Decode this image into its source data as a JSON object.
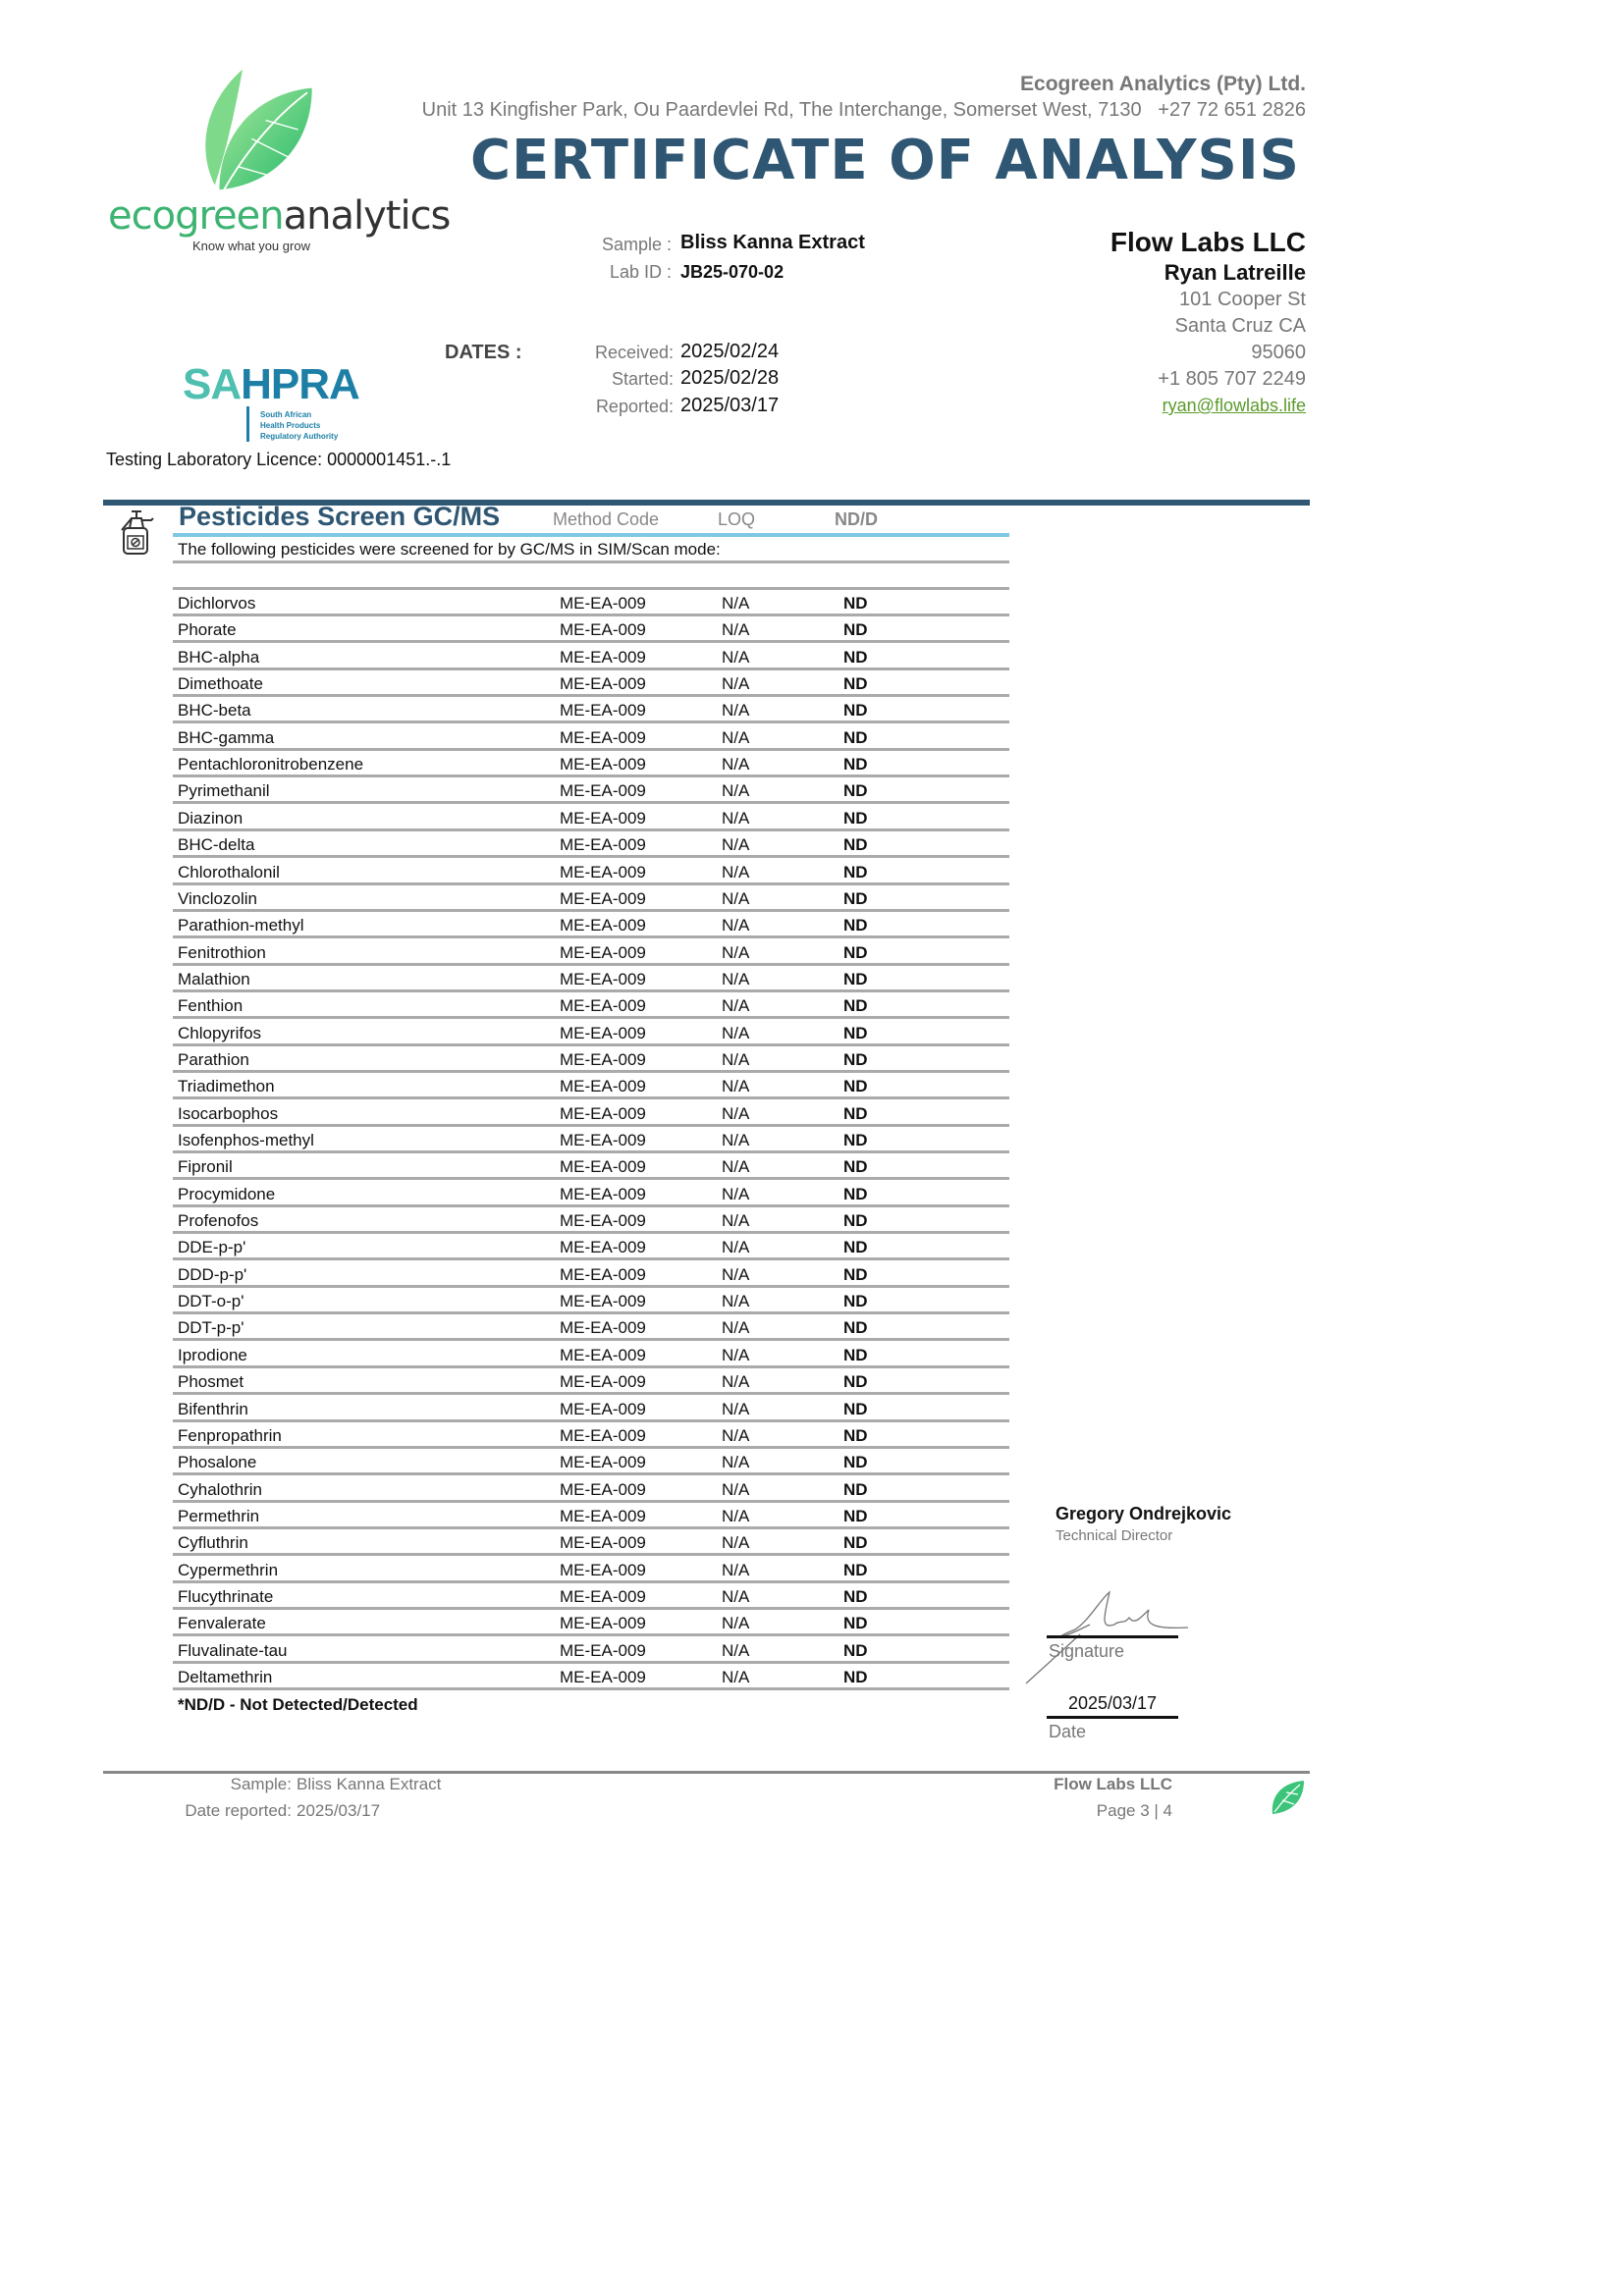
{
  "header": {
    "company_name": "Ecogreen Analytics (Pty) Ltd.",
    "address": "Unit 13 Kingfisher Park, Ou Paardevlei Rd, The Interchange, Somerset West, 7130   +27 72 651 2826",
    "title": "CERTIFICATE OF ANALYSIS",
    "logo_text_green": "ecogreen",
    "logo_text_dark": "analytics",
    "logo_tagline": "Know what you grow",
    "sahpra_sa": "SA",
    "sahpra_hpra": "HPRA",
    "sahpra_sub": "South African\nHealth Products\nRegulatory Authority",
    "licence": "Testing Laboratory Licence: 0000001451.-.1"
  },
  "sample": {
    "sample_label": "Sample :",
    "sample_value": "Bliss Kanna Extract",
    "labid_label": "Lab ID :",
    "labid_value": "JB25-070-02"
  },
  "dates": {
    "heading": "DATES :",
    "received_label": "Received:",
    "received": "2025/02/24",
    "started_label": "Started:",
    "started": "2025/02/28",
    "reported_label": "Reported:",
    "reported": "2025/03/17"
  },
  "client": {
    "company": "Flow Labs LLC",
    "contact": "Ryan Latreille",
    "street": "101 Cooper St",
    "city": "Santa Cruz CA",
    "zip": "95060",
    "phone": "+1 805 707 2249",
    "email": "ryan@flowlabs.life"
  },
  "section": {
    "title": "Pesticides Screen GC/MS",
    "columns": [
      "Method Code",
      "LOQ",
      "ND/D"
    ],
    "intro": "The following pesticides were screened for by GC/MS in SIM/Scan mode:",
    "footnote": "*ND/D - Not Detected/Detected",
    "rows": [
      [
        "Dichlorvos",
        "ME-EA-009",
        "N/A",
        "ND"
      ],
      [
        "Phorate",
        "ME-EA-009",
        "N/A",
        "ND"
      ],
      [
        "BHC-alpha",
        "ME-EA-009",
        "N/A",
        "ND"
      ],
      [
        "Dimethoate",
        "ME-EA-009",
        "N/A",
        "ND"
      ],
      [
        "BHC-beta",
        "ME-EA-009",
        "N/A",
        "ND"
      ],
      [
        "BHC-gamma",
        "ME-EA-009",
        "N/A",
        "ND"
      ],
      [
        "Pentachloronitrobenzene",
        "ME-EA-009",
        "N/A",
        "ND"
      ],
      [
        "Pyrimethanil",
        "ME-EA-009",
        "N/A",
        "ND"
      ],
      [
        "Diazinon",
        "ME-EA-009",
        "N/A",
        "ND"
      ],
      [
        "BHC-delta",
        "ME-EA-009",
        "N/A",
        "ND"
      ],
      [
        "Chlorothalonil",
        "ME-EA-009",
        "N/A",
        "ND"
      ],
      [
        "Vinclozolin",
        "ME-EA-009",
        "N/A",
        "ND"
      ],
      [
        "Parathion-methyl",
        "ME-EA-009",
        "N/A",
        "ND"
      ],
      [
        "Fenitrothion",
        "ME-EA-009",
        "N/A",
        "ND"
      ],
      [
        "Malathion",
        "ME-EA-009",
        "N/A",
        "ND"
      ],
      [
        "Fenthion",
        "ME-EA-009",
        "N/A",
        "ND"
      ],
      [
        "Chlopyrifos",
        "ME-EA-009",
        "N/A",
        "ND"
      ],
      [
        "Parathion",
        "ME-EA-009",
        "N/A",
        "ND"
      ],
      [
        "Triadimethon",
        "ME-EA-009",
        "N/A",
        "ND"
      ],
      [
        "Isocarbophos",
        "ME-EA-009",
        "N/A",
        "ND"
      ],
      [
        "Isofenphos-methyl",
        "ME-EA-009",
        "N/A",
        "ND"
      ],
      [
        "Fipronil",
        "ME-EA-009",
        "N/A",
        "ND"
      ],
      [
        "Procymidone",
        "ME-EA-009",
        "N/A",
        "ND"
      ],
      [
        "Profenofos",
        "ME-EA-009",
        "N/A",
        "ND"
      ],
      [
        "DDE-p-p'",
        "ME-EA-009",
        "N/A",
        "ND"
      ],
      [
        "DDD-p-p'",
        "ME-EA-009",
        "N/A",
        "ND"
      ],
      [
        "DDT-o-p'",
        "ME-EA-009",
        "N/A",
        "ND"
      ],
      [
        "DDT-p-p'",
        "ME-EA-009",
        "N/A",
        "ND"
      ],
      [
        "Iprodione",
        "ME-EA-009",
        "N/A",
        "ND"
      ],
      [
        "Phosmet",
        "ME-EA-009",
        "N/A",
        "ND"
      ],
      [
        "Bifenthrin",
        "ME-EA-009",
        "N/A",
        "ND"
      ],
      [
        "Fenpropathrin",
        "ME-EA-009",
        "N/A",
        "ND"
      ],
      [
        "Phosalone",
        "ME-EA-009",
        "N/A",
        "ND"
      ],
      [
        "Cyhalothrin",
        "ME-EA-009",
        "N/A",
        "ND"
      ],
      [
        "Permethrin",
        "ME-EA-009",
        "N/A",
        "ND"
      ],
      [
        "Cyfluthrin",
        "ME-EA-009",
        "N/A",
        "ND"
      ],
      [
        "Cypermethrin",
        "ME-EA-009",
        "N/A",
        "ND"
      ],
      [
        "Flucythrinate",
        "ME-EA-009",
        "N/A",
        "ND"
      ],
      [
        "Fenvalerate",
        "ME-EA-009",
        "N/A",
        "ND"
      ],
      [
        "Fluvalinate-tau",
        "ME-EA-009",
        "N/A",
        "ND"
      ],
      [
        "Deltamethrin",
        "ME-EA-009",
        "N/A",
        "ND"
      ]
    ]
  },
  "signoff": {
    "name": "Gregory Ondrejkovic",
    "role": "Technical Director",
    "signature_label": "Signature",
    "date_value": "2025/03/17",
    "date_label": "Date"
  },
  "footer": {
    "sample_label": "Sample:",
    "sample_value": "Bliss Kanna Extract",
    "date_label": "Date reported:",
    "date_value": "2025/03/17",
    "client": "Flow Labs LLC",
    "page": "Page 3 | 4"
  },
  "colors": {
    "title": "#2f5672",
    "accent_line": "#7ec8e3",
    "logo_green": "#3cb371",
    "email": "#5a9a2a"
  }
}
